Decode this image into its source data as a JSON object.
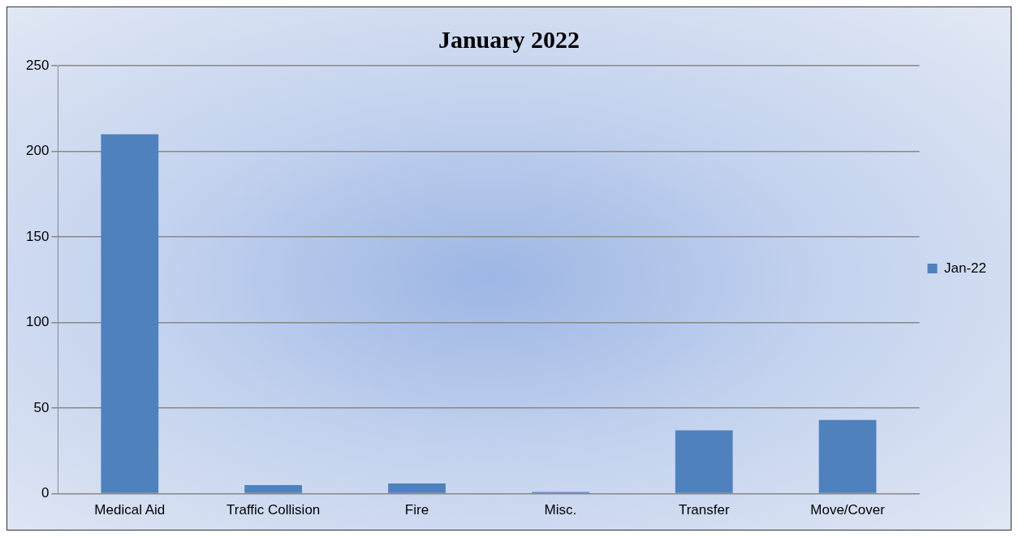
{
  "chart_data": {
    "type": "bar",
    "title": "January 2022",
    "categories": [
      "Medical Aid",
      "Traffic Collision",
      "Fire",
      "Misc.",
      "Transfer",
      "Move/Cover"
    ],
    "series": [
      {
        "name": "Jan-22",
        "color": "#4f81bd",
        "values": [
          210,
          5,
          6,
          1,
          37,
          43
        ]
      }
    ],
    "ylim": [
      0,
      250
    ],
    "yticks": [
      0,
      50,
      100,
      150,
      200,
      250
    ],
    "grid": "y",
    "legend": "right"
  }
}
